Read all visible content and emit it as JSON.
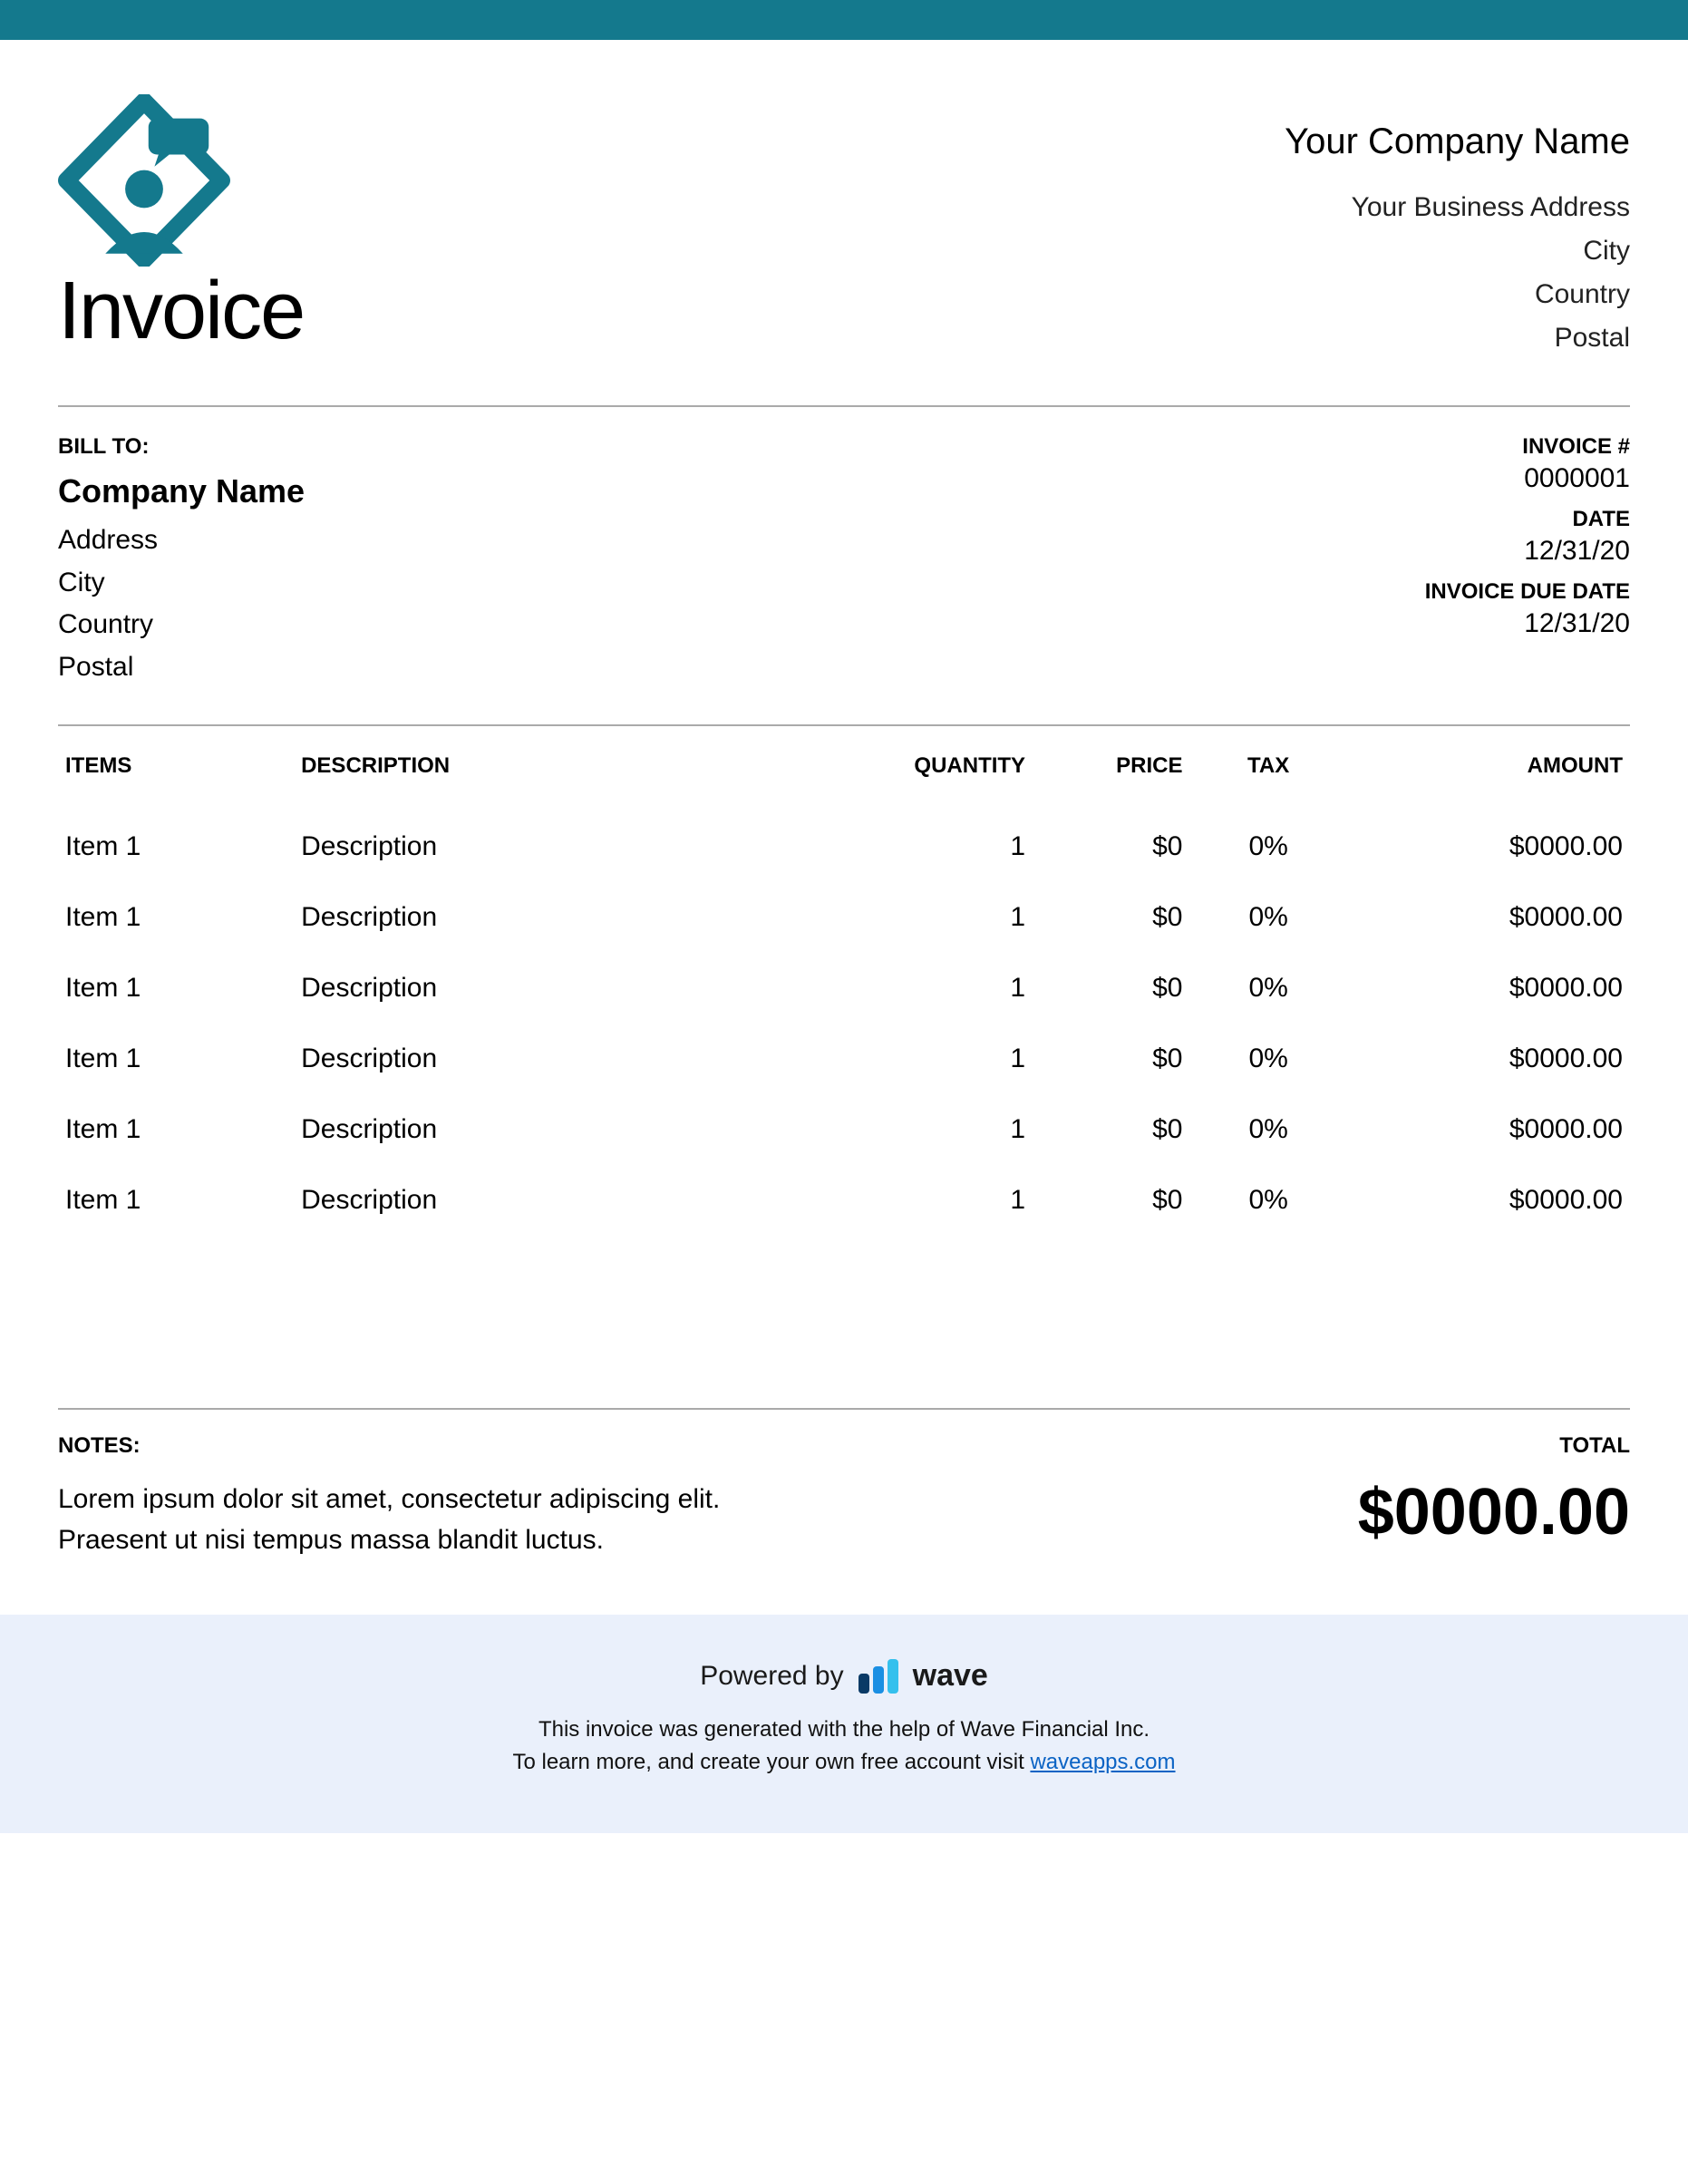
{
  "colors": {
    "accent": "#14798d",
    "footer_bg": "#eaf0fb",
    "hr": "#aaaaaa",
    "link": "#0b63c4"
  },
  "header": {
    "title": "Invoice",
    "company_name": "Your Company Name",
    "address": "Your Business Address",
    "city": "City",
    "country": "Country",
    "postal": "Postal"
  },
  "bill_to": {
    "label": "BILL TO:",
    "company": "Company Name",
    "address": "Address",
    "city": "City",
    "country": "Country",
    "postal": "Postal"
  },
  "invoice_meta": {
    "number_label": "INVOICE #",
    "number": "0000001",
    "date_label": "DATE",
    "date": "12/31/20",
    "due_label": "INVOICE DUE DATE",
    "due": "12/31/20"
  },
  "table": {
    "columns": [
      "ITEMS",
      "DESCRIPTION",
      "QUANTITY",
      "PRICE",
      "TAX",
      "AMOUNT"
    ],
    "rows": [
      {
        "item": "Item 1",
        "desc": "Description",
        "qty": "1",
        "price": "$0",
        "tax": "0%",
        "amount": "$0000.00"
      },
      {
        "item": "Item 1",
        "desc": "Description",
        "qty": "1",
        "price": "$0",
        "tax": "0%",
        "amount": "$0000.00"
      },
      {
        "item": "Item 1",
        "desc": "Description",
        "qty": "1",
        "price": "$0",
        "tax": "0%",
        "amount": "$0000.00"
      },
      {
        "item": "Item 1",
        "desc": "Description",
        "qty": "1",
        "price": "$0",
        "tax": "0%",
        "amount": "$0000.00"
      },
      {
        "item": "Item 1",
        "desc": "Description",
        "qty": "1",
        "price": "$0",
        "tax": "0%",
        "amount": "$0000.00"
      },
      {
        "item": "Item 1",
        "desc": "Description",
        "qty": "1",
        "price": "$0",
        "tax": "0%",
        "amount": "$0000.00"
      }
    ]
  },
  "notes": {
    "label": "NOTES:",
    "text1": "Lorem ipsum dolor sit amet, consectetur adipiscing elit.",
    "text2": "Praesent ut nisi tempus massa blandit luctus."
  },
  "total": {
    "label": "TOTAL",
    "value": "$0000.00"
  },
  "footer": {
    "powered_by": "Powered by",
    "brand": "wave",
    "line1": "This invoice was generated with the help of Wave Financial Inc.",
    "line2_prefix": "To learn more, and create your own free account visit ",
    "link_text": "waveapps.com"
  }
}
